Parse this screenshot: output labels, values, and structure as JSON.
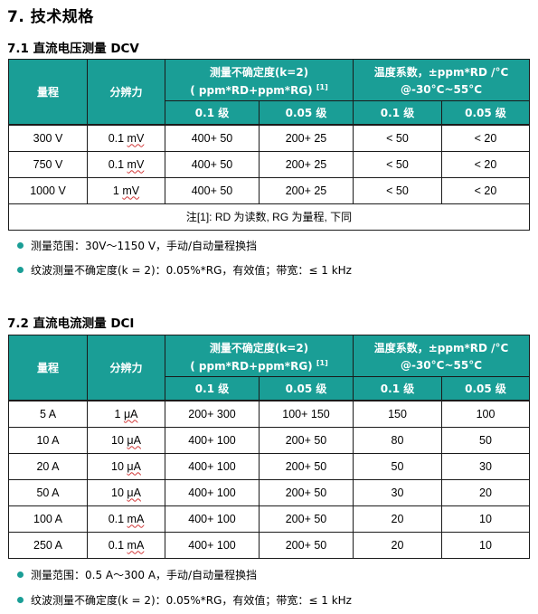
{
  "section_title": "7. 技术规格",
  "dcv": {
    "title": "7.1  直流电压测量 DCV",
    "header": {
      "range": "量程",
      "resolution": "分辨力",
      "uncertainty_title": "测量不确定度(k=2)",
      "uncertainty_unit": "( ppm*RD+ppm*RG)",
      "uncertainty_ref": "[1]",
      "tempco_title": "温度系数，±ppm*RD /°C",
      "tempco_range": "@-30°C~55°C",
      "grade_01": "0.1 级",
      "grade_005": "0.05 级"
    },
    "rows": [
      {
        "range": "300 V",
        "res_num": "0.1 ",
        "res_unit": "mV",
        "u01": "400+ 50",
        "u005": "200+ 25",
        "t01": "< 50",
        "t005": "< 20"
      },
      {
        "range": "750 V",
        "res_num": "0.1 ",
        "res_unit": "mV",
        "u01": "400+ 50",
        "u005": "200+ 25",
        "t01": "< 50",
        "t005": "< 20"
      },
      {
        "range": "1000 V",
        "res_num": "1 ",
        "res_unit": "mV",
        "u01": "400+ 50",
        "u005": "200+ 25",
        "t01": "< 50",
        "t005": "< 20"
      }
    ],
    "note": "注[1]: RD 为读数, RG 为量程, 下同",
    "bullets": [
      "测量范围：30V～1150 V，手动/自动量程换挡",
      "纹波测量不确定度(k = 2)：0.05%*RG，有效值；带宽：≤ 1 kHz"
    ]
  },
  "dci": {
    "title": "7.2  直流电流测量 DCI",
    "header": {
      "range": "量程",
      "resolution": "分辨力",
      "uncertainty_title": "测量不确定度(k=2)",
      "uncertainty_unit": "( ppm*RD+ppm*RG)",
      "uncertainty_ref": "[1]",
      "tempco_title": "温度系数，±ppm*RD /°C",
      "tempco_range": "@-30°C~55°C",
      "grade_01": "0.1 级",
      "grade_005": "0.05 级"
    },
    "rows": [
      {
        "range": "5 A",
        "res_num": "1 ",
        "res_unit": "μA",
        "u01": "200+ 300",
        "u005": "100+ 150",
        "t01": "150",
        "t005": "100"
      },
      {
        "range": "10 A",
        "res_num": "10 ",
        "res_unit": "μA",
        "u01": "400+ 100",
        "u005": "200+ 50",
        "t01": "80",
        "t005": "50"
      },
      {
        "range": "20 A",
        "res_num": "10 ",
        "res_unit": "μA",
        "u01": "400+ 100",
        "u005": "200+ 50",
        "t01": "50",
        "t005": "30"
      },
      {
        "range": "50 A",
        "res_num": "10 ",
        "res_unit": "μA",
        "u01": "400+ 100",
        "u005": "200+ 50",
        "t01": "30",
        "t005": "20"
      },
      {
        "range": "100 A",
        "res_num": "0.1 ",
        "res_unit": "mA",
        "u01": "400+ 100",
        "u005": "200+ 50",
        "t01": "20",
        "t005": "10"
      },
      {
        "range": "250 A",
        "res_num": "0.1 ",
        "res_unit": "mA",
        "u01": "400+ 100",
        "u005": "200+ 50",
        "t01": "20",
        "t005": "10"
      }
    ],
    "bullets": [
      "测量范围：0.5 A～300 A，手动/自动量程换挡",
      "纹波测量不确定度(k = 2)：0.05%*RG，有效值；带宽：≤ 1 kHz"
    ]
  },
  "colors": {
    "header_bg": "#1a9e96",
    "bullet": "#1a9e96"
  }
}
